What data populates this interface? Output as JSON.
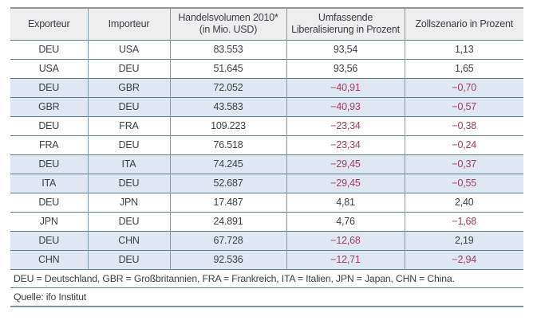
{
  "chart_data": {
    "type": "table",
    "header_lines": [
      {
        "line1": "Exporteur",
        "line2": ""
      },
      {
        "line1": "Importeur",
        "line2": ""
      },
      {
        "line1": "Handelsvolumen 2010*",
        "line2": "(in Mio. USD)"
      },
      {
        "line1": "Umfassende",
        "line2": "Liberalisierung in Prozent"
      },
      {
        "line1": "Zollszenario in Prozent",
        "line2": ""
      }
    ],
    "columns": [
      "Exporteur",
      "Importeur",
      "Handelsvolumen 2010* (in Mio. USD)",
      "Umfassende Liberalisierung in Prozent",
      "Zollszenario in Prozent"
    ],
    "rows": [
      [
        "DEU",
        "USA",
        "83.553",
        "93,54",
        "1,13"
      ],
      [
        "USA",
        "DEU",
        "51.645",
        "93,56",
        "1,65"
      ],
      [
        "DEU",
        "GBR",
        "72.052",
        "−40,91",
        "−0,70"
      ],
      [
        "GBR",
        "DEU",
        "43.583",
        "−40,93",
        "−0,57"
      ],
      [
        "DEU",
        "FRA",
        "109.223",
        "−23,34",
        "−0,38"
      ],
      [
        "FRA",
        "DEU",
        "76.518",
        "−23,34",
        "−0,24"
      ],
      [
        "DEU",
        "ITA",
        "74.245",
        "−29,45",
        "−0,37"
      ],
      [
        "ITA",
        "DEU",
        "52.687",
        "−29,45",
        "−0,55"
      ],
      [
        "DEU",
        "JPN",
        "17.487",
        "4,81",
        "2,40"
      ],
      [
        "JPN",
        "DEU",
        "24.891",
        "4,76",
        "−1,68"
      ],
      [
        "DEU",
        "CHN",
        "67.728",
        "−12,68",
        "2,19"
      ],
      [
        "CHN",
        "DEU",
        "92.536",
        "−12,71",
        "−2,94"
      ]
    ],
    "note": "DEU = Deutschland, GBR = Großbritannien, FRA = Frankreich, ITA = Italien, JPN = Japan, CHN = China.",
    "source": "Quelle: ifo Institut"
  },
  "colors": {
    "header_bg": "#eeeeee",
    "shaded_row_bg": "#dfe8f2",
    "negative": "#aa3a5c",
    "text": "#3b4045",
    "inner_border": "#56808f",
    "vert_border": "#7f99a9",
    "outer_top": "#8e959b",
    "outer_bottom": "#7b93a2",
    "page_bg": "#ffffff"
  }
}
